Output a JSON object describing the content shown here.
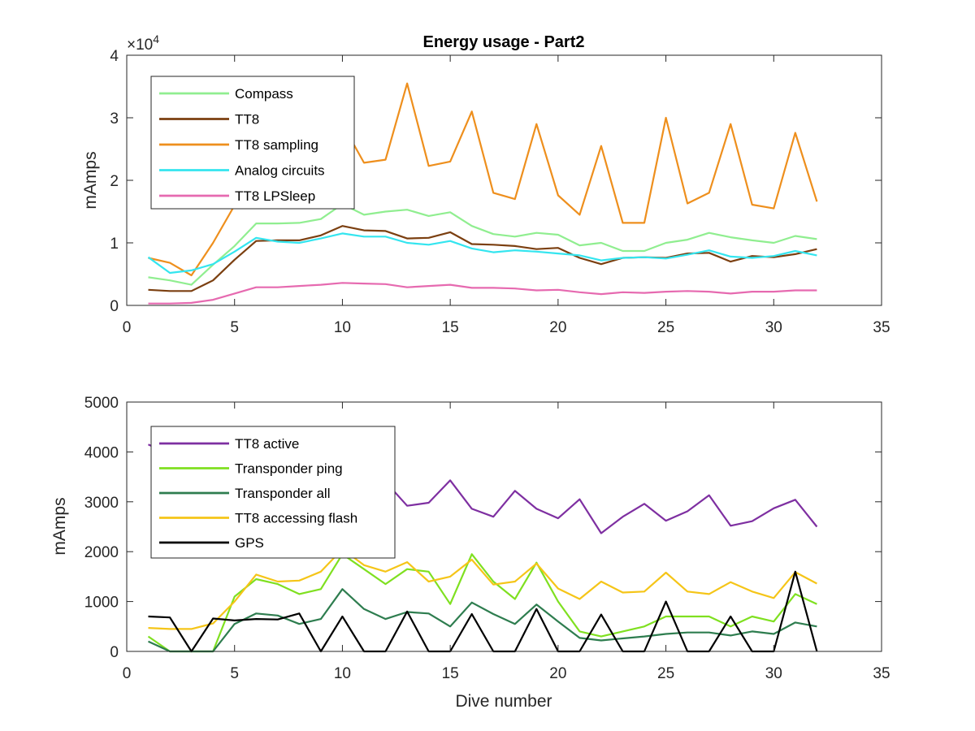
{
  "chart_data": [
    {
      "type": "line",
      "title": "Energy usage - Part2",
      "xlabel": "",
      "ylabel": "mAmps",
      "exponent_label": "×10",
      "exponent_power": "4",
      "xlim": [
        0,
        35
      ],
      "ylim": [
        0,
        40000
      ],
      "xticks": [
        0,
        5,
        10,
        15,
        20,
        25,
        30,
        35
      ],
      "yticks": [
        0,
        10000,
        20000,
        30000,
        40000
      ],
      "ytick_labels": [
        "0",
        "1",
        "2",
        "3",
        "4"
      ],
      "grid": false,
      "legend_position": "top-left",
      "x": [
        1,
        2,
        3,
        4,
        5,
        6,
        7,
        8,
        9,
        10,
        11,
        12,
        13,
        14,
        15,
        16,
        17,
        18,
        19,
        20,
        21,
        22,
        23,
        24,
        25,
        26,
        27,
        28,
        29,
        30,
        31,
        32
      ],
      "series": [
        {
          "name": "Compass",
          "color": "#90ee90",
          "values": [
            4500,
            4000,
            3300,
            6500,
            9500,
            13100,
            13100,
            13200,
            13800,
            16200,
            14500,
            15000,
            15300,
            14300,
            14900,
            12700,
            11400,
            11000,
            11600,
            11300,
            9600,
            10000,
            8700,
            8700,
            10000,
            10500,
            11600,
            10900,
            10400,
            10000,
            11100,
            10600
          ]
        },
        {
          "name": "TT8",
          "color": "#7b3f10",
          "values": [
            2500,
            2300,
            2300,
            4000,
            7300,
            10300,
            10400,
            10400,
            11200,
            12700,
            12000,
            11900,
            10700,
            10800,
            11700,
            9800,
            9700,
            9500,
            9000,
            9200,
            7600,
            6600,
            7600,
            7700,
            7600,
            8300,
            8400,
            7000,
            7900,
            7700,
            8200,
            9000
          ]
        },
        {
          "name": "TT8 sampling",
          "color": "#ee8f1d",
          "values": [
            7600,
            6800,
            4800,
            10000,
            16000,
            17000,
            17500,
            18000,
            20000,
            29000,
            22800,
            23300,
            35500,
            22300,
            23000,
            31000,
            18000,
            17000,
            29000,
            17600,
            14500,
            25500,
            13200,
            13200,
            30000,
            16300,
            18000,
            29000,
            16100,
            15500,
            27600,
            16600
          ]
        },
        {
          "name": "Analog circuits",
          "color": "#34e5ef",
          "values": [
            7700,
            5200,
            5600,
            6600,
            8600,
            10800,
            10200,
            10000,
            10700,
            11500,
            11000,
            11000,
            10000,
            9700,
            10300,
            9100,
            8500,
            8800,
            8600,
            8300,
            8000,
            7200,
            7600,
            7700,
            7500,
            8100,
            8800,
            7800,
            7600,
            7900,
            8700,
            8000
          ]
        },
        {
          "name": "TT8 LPSleep",
          "color": "#e66ab0",
          "values": [
            300,
            300,
            400,
            900,
            1900,
            2900,
            2900,
            3100,
            3300,
            3600,
            3500,
            3400,
            2900,
            3100,
            3300,
            2800,
            2800,
            2700,
            2400,
            2500,
            2100,
            1800,
            2100,
            2000,
            2200,
            2300,
            2200,
            1900,
            2200,
            2200,
            2400,
            2400
          ]
        }
      ]
    },
    {
      "type": "line",
      "title": "",
      "xlabel": "Dive number",
      "ylabel": "mAmps",
      "xlim": [
        0,
        35
      ],
      "ylim": [
        0,
        5000
      ],
      "xticks": [
        0,
        5,
        10,
        15,
        20,
        25,
        30,
        35
      ],
      "yticks": [
        0,
        1000,
        2000,
        3000,
        4000,
        5000
      ],
      "ytick_labels": [
        "0",
        "1000",
        "2000",
        "3000",
        "4000",
        "5000"
      ],
      "grid": false,
      "legend_position": "top-left",
      "x": [
        1,
        2,
        3,
        4,
        5,
        6,
        7,
        8,
        9,
        10,
        11,
        12,
        13,
        14,
        15,
        16,
        17,
        18,
        19,
        20,
        21,
        22,
        23,
        24,
        25,
        26,
        27,
        28,
        29,
        30,
        31,
        32
      ],
      "series": [
        {
          "name": "TT8 active",
          "color": "#7e2fa1",
          "values": [
            4150,
            3950,
            3800,
            3700,
            3650,
            3600,
            3600,
            3550,
            3500,
            3500,
            3450,
            3400,
            2920,
            2980,
            3430,
            2860,
            2700,
            3220,
            2860,
            2670,
            3050,
            2370,
            2700,
            2960,
            2620,
            2810,
            3130,
            2520,
            2610,
            2870,
            3040,
            2500
          ]
        },
        {
          "name": "Transponder ping",
          "color": "#7fe020",
          "values": [
            300,
            0,
            0,
            0,
            1100,
            1450,
            1350,
            1150,
            1250,
            1950,
            1650,
            1350,
            1650,
            1600,
            950,
            1950,
            1400,
            1050,
            1780,
            1000,
            400,
            300,
            400,
            500,
            700,
            700,
            700,
            500,
            700,
            600,
            1150,
            950
          ]
        },
        {
          "name": "Transponder all",
          "color": "#2e7d4f",
          "values": [
            200,
            0,
            0,
            0,
            550,
            760,
            720,
            550,
            650,
            1250,
            850,
            650,
            790,
            760,
            500,
            980,
            750,
            550,
            940,
            600,
            270,
            220,
            260,
            300,
            350,
            380,
            380,
            320,
            400,
            350,
            580,
            500
          ]
        },
        {
          "name": "TT8 accessing flash",
          "color": "#f5c518",
          "values": [
            470,
            450,
            450,
            560,
            1000,
            1540,
            1400,
            1420,
            1600,
            2050,
            1730,
            1600,
            1790,
            1400,
            1500,
            1840,
            1340,
            1400,
            1760,
            1260,
            1050,
            1400,
            1180,
            1200,
            1580,
            1200,
            1150,
            1390,
            1200,
            1070,
            1590,
            1360
          ]
        },
        {
          "name": "GPS",
          "color": "#000000",
          "values": [
            700,
            680,
            0,
            660,
            620,
            650,
            640,
            760,
            0,
            700,
            0,
            0,
            800,
            0,
            0,
            750,
            0,
            0,
            850,
            0,
            0,
            740,
            0,
            0,
            1000,
            0,
            0,
            700,
            0,
            0,
            1600,
            0
          ]
        }
      ]
    }
  ]
}
